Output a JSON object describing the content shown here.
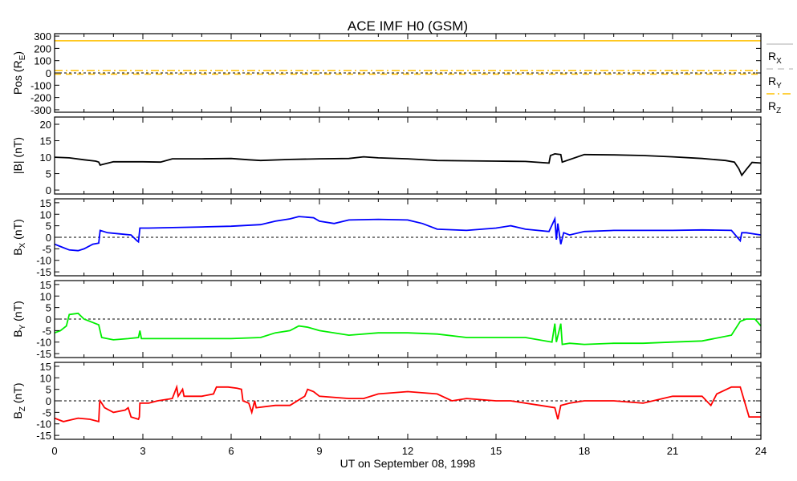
{
  "chart_data": {
    "type": "line",
    "title": "ACE IMF H0 (GSM)",
    "xlabel": "UT on September 08, 1998",
    "xlim": [
      0,
      24
    ],
    "xticks": [
      0,
      3,
      6,
      9,
      12,
      15,
      18,
      21,
      24
    ],
    "xtick_labels": [
      "0",
      "3",
      "6",
      "9",
      "12",
      "15",
      "18",
      "21",
      "24"
    ],
    "panels": [
      {
        "ylabel": "Pos",
        "ylabel_sub": "E",
        "ylabel_pre": "(R",
        "ylabel_post": ")",
        "ylim": [
          -320,
          320
        ],
        "yticks": [
          300,
          200,
          100,
          0,
          -100,
          -200,
          -300
        ],
        "ytick_labels": [
          "300",
          "200",
          "100",
          "0",
          "-100",
          "-200",
          "-300"
        ],
        "zero_line": true,
        "series": [
          {
            "name": "RX",
            "sub": "X",
            "color": "#ffc000",
            "dash": "",
            "x": [
              0,
              24
            ],
            "y": [
              262,
              262
            ]
          },
          {
            "name": "RY",
            "sub": "Y",
            "color": "#ffc000",
            "dash": "8 6",
            "x": [
              0,
              24
            ],
            "y": [
              -10,
              -10
            ]
          },
          {
            "name": "RZ",
            "sub": "Z",
            "color": "#ffc000",
            "dash": "10 4 2 4",
            "x": [
              0,
              24
            ],
            "y": [
              20,
              20
            ]
          }
        ],
        "legend": {
          "placement": "right",
          "entries": [
            "R",
            "R",
            "R"
          ],
          "subs": [
            "X",
            "Y",
            "Z"
          ],
          "line_colors": [
            "#c8c8c8",
            "#c8c8c8",
            "#ffc000"
          ]
        }
      },
      {
        "ylabel": "|B|",
        "ylabel_post": " (nT)",
        "ylim": [
          -1.2,
          22.2
        ],
        "yticks": [
          20,
          15,
          10,
          5,
          0
        ],
        "ytick_labels": [
          "20",
          "15",
          "10",
          "5",
          "0"
        ],
        "zero_line": false,
        "series": [
          {
            "name": "|B|",
            "color": "#000000",
            "x": [
              0,
              0.5,
              1,
              1.4,
              1.5,
              1.55,
              2,
              3,
              3.6,
              4,
              5,
              6,
              6.6,
              7,
              8,
              9,
              10,
              10.5,
              11,
              12,
              13,
              14,
              15,
              16,
              16.8,
              16.85,
              17,
              17.2,
              17.25,
              18,
              19,
              20,
              21,
              22,
              22.8,
              23.1,
              23.25,
              23.35,
              23.5,
              23.7,
              24
            ],
            "y": [
              10,
              9.8,
              9.2,
              8.8,
              8.5,
              7.6,
              8.6,
              8.6,
              8.5,
              9.5,
              9.5,
              9.6,
              9.2,
              9.0,
              9.3,
              9.5,
              9.6,
              10.1,
              9.8,
              9.5,
              9.0,
              8.9,
              8.8,
              8.7,
              8.2,
              10.5,
              11,
              10.8,
              8.5,
              10.8,
              10.7,
              10.5,
              10.1,
              9.6,
              9.0,
              8.5,
              6.5,
              4.5,
              6.2,
              8.4,
              8.2
            ]
          }
        ]
      },
      {
        "ylabel": "B",
        "ylabel_sub": "X",
        "ylabel_post": " (nT)",
        "ylim": [
          -16.7,
          16.7
        ],
        "yticks": [
          15,
          10,
          5,
          0,
          -5,
          -10,
          -15
        ],
        "ytick_labels": [
          "15",
          "10",
          "5",
          "0",
          "-5",
          "-10",
          "-15"
        ],
        "zero_line": true,
        "series": [
          {
            "name": "BX",
            "color": "#0000ff",
            "x": [
              0,
              0.2,
              0.5,
              0.8,
              1,
              1.3,
              1.5,
              1.55,
              1.8,
              2.2,
              2.6,
              2.8,
              2.85,
              2.9,
              3.2,
              4,
              5,
              6,
              7,
              7.5,
              8,
              8.3,
              8.8,
              9,
              9.5,
              10,
              11,
              12,
              12.5,
              13,
              14,
              15,
              15.5,
              16,
              16.8,
              17,
              17.05,
              17.1,
              17.2,
              17.3,
              17.5,
              18,
              19,
              20,
              21,
              22,
              23,
              23.3,
              23.35,
              23.5,
              24
            ],
            "y": [
              -3,
              -4,
              -5.5,
              -5.8,
              -5,
              -3,
              -2.5,
              3,
              2,
              1.5,
              1,
              -1.5,
              -2,
              4,
              4,
              4.2,
              4.5,
              4.8,
              5.5,
              7,
              8,
              9,
              8.5,
              7,
              6,
              7.5,
              7.8,
              7.5,
              6,
              3.5,
              3,
              4,
              5,
              3.5,
              2.5,
              8,
              -1,
              6,
              -3,
              2,
              1,
              2.5,
              3,
              3,
              3,
              3.2,
              3,
              -1.5,
              2,
              2,
              1
            ]
          }
        ]
      },
      {
        "ylabel": "B",
        "ylabel_sub": "Y",
        "ylabel_post": " (nT)",
        "ylim": [
          -16.7,
          16.7
        ],
        "yticks": [
          15,
          10,
          5,
          0,
          -5,
          -10,
          -15
        ],
        "ytick_labels": [
          "15",
          "10",
          "5",
          "0",
          "-5",
          "-10",
          "-15"
        ],
        "zero_line": true,
        "series": [
          {
            "name": "BY",
            "color": "#00ee00",
            "x": [
              0,
              0.2,
              0.4,
              0.5,
              0.8,
              1,
              1.3,
              1.5,
              1.6,
              2,
              2.5,
              2.85,
              2.9,
              2.95,
              3.2,
              4,
              5,
              6,
              7,
              7.5,
              8,
              8.3,
              8.6,
              9,
              10,
              11,
              12,
              13,
              14,
              15,
              16,
              16.9,
              17,
              17.05,
              17.2,
              17.25,
              17.5,
              18,
              19,
              20,
              21,
              22,
              23,
              23.25,
              23.3,
              23.5,
              23.8,
              24
            ],
            "y": [
              -6,
              -5,
              -3,
              2,
              2.5,
              0,
              -1.5,
              -2.5,
              -8,
              -9,
              -8.5,
              -8,
              -5,
              -8.5,
              -8.5,
              -8.5,
              -8.5,
              -8.5,
              -8,
              -6,
              -5,
              -3,
              -3.5,
              -5,
              -7,
              -6,
              -6,
              -6.5,
              -8,
              -8,
              -8,
              -10,
              -2,
              -10,
              -2,
              -11,
              -10.5,
              -11,
              -10.5,
              -10.5,
              -10,
              -9.5,
              -7,
              -2,
              -1,
              0,
              0,
              -3
            ]
          }
        ]
      },
      {
        "ylabel": "B",
        "ylabel_sub": "Z",
        "ylabel_post": " (nT)",
        "ylim": [
          -16.7,
          16.7
        ],
        "yticks": [
          15,
          10,
          5,
          0,
          -5,
          -10,
          -15
        ],
        "ytick_labels": [
          "15",
          "10",
          "5",
          "0",
          "-5",
          "-10",
          "-15"
        ],
        "zero_line": true,
        "series": [
          {
            "name": "BZ",
            "color": "#ff0000",
            "x": [
              0,
              0.3,
              0.8,
              1.2,
              1.5,
              1.53,
              1.55,
              1.7,
              2,
              2.4,
              2.5,
              2.6,
              2.85,
              2.88,
              2.9,
              3.2,
              3.5,
              4,
              4.15,
              4.2,
              4.35,
              4.4,
              5,
              5.4,
              5.5,
              5.9,
              6.2,
              6.35,
              6.4,
              6.6,
              6.7,
              6.8,
              6.85,
              7.5,
              8,
              8.5,
              8.6,
              8.8,
              9,
              10,
              10.5,
              11,
              12,
              13,
              13.5,
              14,
              15,
              15.5,
              16,
              16.5,
              17,
              17.1,
              17.2,
              17.5,
              18,
              19,
              20,
              21,
              22,
              22.3,
              22.5,
              23,
              23.3,
              23.6,
              24
            ],
            "y": [
              -7.5,
              -9,
              -7.5,
              -8,
              -9,
              -1,
              0,
              -3,
              -5,
              -4,
              -3,
              -7,
              -8,
              -7,
              -1,
              -1,
              0,
              1,
              6,
              2,
              5,
              2,
              2,
              3,
              6,
              6,
              5.5,
              5,
              0,
              -1,
              -5,
              0,
              -3,
              -2,
              -2,
              2,
              5,
              4,
              2,
              1,
              1,
              3,
              4,
              3,
              0,
              1,
              0,
              0,
              -1,
              -2,
              -3,
              -8,
              -2,
              -1,
              0,
              0,
              -1,
              2,
              2,
              -2,
              3,
              6,
              6,
              -7,
              -7
            ]
          }
        ]
      }
    ]
  }
}
